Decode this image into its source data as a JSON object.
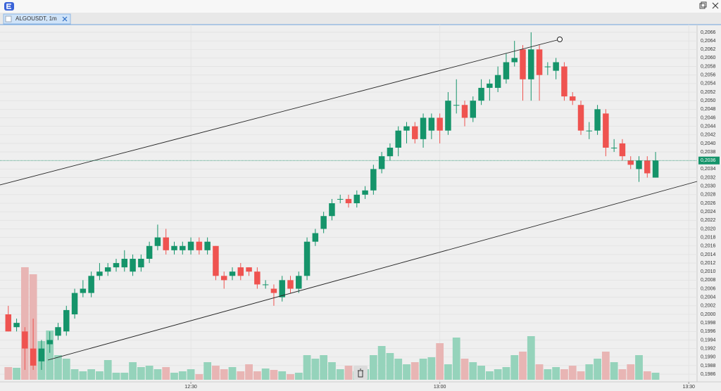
{
  "tab": {
    "label": "ALGOUSDT, 1m"
  },
  "chart_data": {
    "type": "candlestick",
    "x": [
      "12:08",
      "12:09",
      "12:10",
      "12:11",
      "12:12",
      "12:13",
      "12:14",
      "12:15",
      "12:16",
      "12:17",
      "12:18",
      "12:19",
      "12:20",
      "12:21",
      "12:22",
      "12:23",
      "12:24",
      "12:25",
      "12:26",
      "12:27",
      "12:28",
      "12:29",
      "12:30",
      "12:31",
      "12:32",
      "12:33",
      "12:34",
      "12:35",
      "12:36",
      "12:37",
      "12:38",
      "12:39",
      "12:40",
      "12:41",
      "12:42",
      "12:43",
      "12:44",
      "12:45",
      "12:46",
      "12:47",
      "12:48",
      "12:49",
      "12:50",
      "12:51",
      "12:52",
      "12:53",
      "12:54",
      "12:55",
      "12:56",
      "12:57",
      "12:58",
      "12:59",
      "13:00",
      "13:01",
      "13:02",
      "13:03",
      "13:04",
      "13:05",
      "13:06",
      "13:07",
      "13:08",
      "13:09",
      "13:10",
      "13:11",
      "13:12",
      "13:13",
      "13:14",
      "13:15",
      "13:16",
      "13:17",
      "13:18",
      "13:19",
      "13:20",
      "13:21",
      "13:22",
      "13:23",
      "13:24",
      "13:25",
      "13:26"
    ],
    "open": [
      0.2,
      0.1997,
      0.1996,
      0.1992,
      0.1989,
      0.1993,
      0.1995,
      0.1996,
      0.2,
      0.2005,
      0.2005,
      0.2009,
      0.201,
      0.2011,
      0.2011,
      0.201,
      0.2011,
      0.2013,
      0.2016,
      0.2018,
      0.2015,
      0.2015,
      0.2015,
      0.2017,
      0.2015,
      0.2016,
      0.2009,
      0.2009,
      0.2011,
      0.2011,
      0.201,
      0.2007,
      0.2006,
      0.2004,
      0.2008,
      0.2006,
      0.2009,
      0.2017,
      0.202,
      0.2023,
      0.2027,
      0.2027,
      0.2026,
      0.2028,
      0.2029,
      0.2034,
      0.2037,
      0.2039,
      0.2043,
      0.2044,
      0.2041,
      0.2043,
      0.2046,
      0.2043,
      0.2049,
      0.2049,
      0.2046,
      0.205,
      0.2053,
      0.2053,
      0.2055,
      0.2059,
      0.2062,
      0.2055,
      0.2062,
      0.2058,
      0.2057,
      0.2058,
      0.2051,
      0.2049,
      0.2043,
      0.2043,
      0.2047,
      0.2039,
      0.204,
      0.2036,
      0.2034,
      0.2036,
      0.2032
    ],
    "high": [
      0.2002,
      0.1999,
      0.1997,
      0.1999,
      0.1994,
      0.1996,
      0.1998,
      0.2002,
      0.2006,
      0.2008,
      0.201,
      0.2012,
      0.2012,
      0.2013,
      0.2015,
      0.2014,
      0.2014,
      0.2017,
      0.2021,
      0.202,
      0.2017,
      0.2017,
      0.2018,
      0.2018,
      0.2018,
      0.2016,
      0.201,
      0.2011,
      0.2012,
      0.2011,
      0.2011,
      0.2008,
      0.2007,
      0.2009,
      0.2009,
      0.201,
      0.2018,
      0.202,
      0.2024,
      0.2027,
      0.2028,
      0.2028,
      0.2029,
      0.203,
      0.2035,
      0.2038,
      0.204,
      0.2044,
      0.2045,
      0.2045,
      0.2047,
      0.2047,
      0.2047,
      0.2052,
      0.2055,
      0.205,
      0.2051,
      0.2055,
      0.2055,
      0.2058,
      0.2061,
      0.2064,
      0.2063,
      0.2066,
      0.2063,
      0.2059,
      0.206,
      0.2059,
      0.2052,
      0.205,
      0.2045,
      0.2049,
      0.2048,
      0.2041,
      0.2041,
      0.2037,
      0.2037,
      0.2037,
      0.2038
    ],
    "low": [
      0.1996,
      0.1996,
      0.1987,
      0.1987,
      0.1987,
      0.1991,
      0.1994,
      0.1995,
      0.1999,
      0.2004,
      0.2004,
      0.2008,
      0.2009,
      0.201,
      0.201,
      0.2009,
      0.201,
      0.2012,
      0.2015,
      0.2014,
      0.2014,
      0.2014,
      0.2014,
      0.2014,
      0.2014,
      0.2008,
      0.2006,
      0.2008,
      0.2008,
      0.2009,
      0.2006,
      0.2006,
      0.2002,
      0.2003,
      0.2005,
      0.2005,
      0.2008,
      0.2016,
      0.2019,
      0.2022,
      0.2026,
      0.2025,
      0.2025,
      0.2027,
      0.2028,
      0.2033,
      0.2036,
      0.2037,
      0.204,
      0.204,
      0.2039,
      0.2041,
      0.204,
      0.2042,
      0.2047,
      0.2044,
      0.2045,
      0.2049,
      0.205,
      0.2052,
      0.2054,
      0.2058,
      0.205,
      0.205,
      0.205,
      0.2056,
      0.2055,
      0.205,
      0.2049,
      0.2042,
      0.2041,
      0.2042,
      0.2037,
      0.2038,
      0.2036,
      0.2034,
      0.2031,
      0.2032,
      0.2032
    ],
    "close": [
      0.1996,
      0.1998,
      0.1992,
      0.1988,
      0.1992,
      0.1994,
      0.1997,
      0.2001,
      0.2005,
      0.2006,
      0.2009,
      0.201,
      0.2011,
      0.2012,
      0.2013,
      0.2013,
      0.2013,
      0.2016,
      0.2018,
      0.2015,
      0.2016,
      0.2016,
      0.2017,
      0.2015,
      0.2017,
      0.2009,
      0.2008,
      0.201,
      0.2009,
      0.201,
      0.2007,
      0.2007,
      0.2005,
      0.2008,
      0.2006,
      0.2009,
      0.2017,
      0.2019,
      0.2023,
      0.2026,
      0.2027,
      0.2026,
      0.2028,
      0.2029,
      0.2034,
      0.2037,
      0.2039,
      0.2043,
      0.2044,
      0.2041,
      0.2046,
      0.2046,
      0.2043,
      0.205,
      0.2049,
      0.2046,
      0.205,
      0.2053,
      0.2054,
      0.2056,
      0.2059,
      0.206,
      0.2055,
      0.2062,
      0.2056,
      0.2058,
      0.2059,
      0.2051,
      0.205,
      0.2043,
      0.2043,
      0.2048,
      0.2039,
      0.2039,
      0.2037,
      0.2035,
      0.2036,
      0.2033,
      0.2036
    ],
    "volume": [
      18,
      17,
      160,
      150,
      55,
      70,
      35,
      30,
      15,
      12,
      15,
      12,
      28,
      10,
      10,
      25,
      18,
      20,
      15,
      18,
      10,
      12,
      15,
      8,
      25,
      20,
      15,
      18,
      12,
      22,
      12,
      16,
      14,
      12,
      8,
      10,
      35,
      30,
      35,
      25,
      15,
      20,
      12,
      15,
      35,
      48,
      38,
      30,
      22,
      25,
      30,
      32,
      52,
      22,
      60,
      30,
      25,
      20,
      12,
      15,
      18,
      35,
      40,
      62,
      22,
      15,
      18,
      15,
      20,
      12,
      22,
      30,
      40,
      25,
      15,
      22,
      35,
      12,
      10
    ],
    "up_color": "#15946a",
    "down_color": "#ef5350",
    "up_volume_color": "#95d3bb",
    "down_volume_color": "#e8b5b4",
    "xlim": [
      "12:07",
      "13:31"
    ],
    "xticks": [
      "12:30",
      "13:00",
      "13:30"
    ],
    "ylim": [
      0.19842,
      0.20678
    ],
    "yticks": [
      {
        "value": 0.1986,
        "label": "0,1986"
      },
      {
        "value": 0.1988,
        "label": "0,1988"
      },
      {
        "value": 0.199,
        "label": "0,1990"
      },
      {
        "value": 0.1992,
        "label": "0,1992"
      },
      {
        "value": 0.1994,
        "label": "0,1994"
      },
      {
        "value": 0.1996,
        "label": "0,1996"
      },
      {
        "value": 0.1998,
        "label": "0,1998"
      },
      {
        "value": 0.2,
        "label": "0,2000"
      },
      {
        "value": 0.2002,
        "label": "0,2002"
      },
      {
        "value": 0.2004,
        "label": "0,2004"
      },
      {
        "value": 0.2006,
        "label": "0,2006"
      },
      {
        "value": 0.2008,
        "label": "0,2008"
      },
      {
        "value": 0.201,
        "label": "0,2010"
      },
      {
        "value": 0.2012,
        "label": "0,2012"
      },
      {
        "value": 0.2014,
        "label": "0,2014"
      },
      {
        "value": 0.2016,
        "label": "0,2016"
      },
      {
        "value": 0.2018,
        "label": "0,2018"
      },
      {
        "value": 0.202,
        "label": "0,2020"
      },
      {
        "value": 0.2022,
        "label": "0,2022"
      },
      {
        "value": 0.2024,
        "label": "0,2024"
      },
      {
        "value": 0.2026,
        "label": "0,2026"
      },
      {
        "value": 0.2028,
        "label": "0,2028"
      },
      {
        "value": 0.203,
        "label": "0,2030"
      },
      {
        "value": 0.2032,
        "label": "0,2032"
      },
      {
        "value": 0.2034,
        "label": "0,2034"
      },
      {
        "value": 0.2036,
        "label": "0,2036"
      },
      {
        "value": 0.2038,
        "label": "0,2038"
      },
      {
        "value": 0.204,
        "label": "0,2040"
      },
      {
        "value": 0.2042,
        "label": "0,2042"
      },
      {
        "value": 0.2044,
        "label": "0,2044"
      },
      {
        "value": 0.2046,
        "label": "0,2046"
      },
      {
        "value": 0.2048,
        "label": "0,2048"
      },
      {
        "value": 0.205,
        "label": "0,2050"
      },
      {
        "value": 0.2052,
        "label": "0,2052"
      },
      {
        "value": 0.2054,
        "label": "0,2054"
      },
      {
        "value": 0.2056,
        "label": "0,2056"
      },
      {
        "value": 0.2058,
        "label": "0,2058"
      },
      {
        "value": 0.206,
        "label": "0,2060"
      },
      {
        "value": 0.2062,
        "label": "0,2062"
      },
      {
        "value": 0.2064,
        "label": "0,2064"
      },
      {
        "value": 0.2066,
        "label": "0,2066"
      }
    ],
    "last_price": {
      "value": 0.2036,
      "label": "0,2036"
    },
    "grid": true
  }
}
